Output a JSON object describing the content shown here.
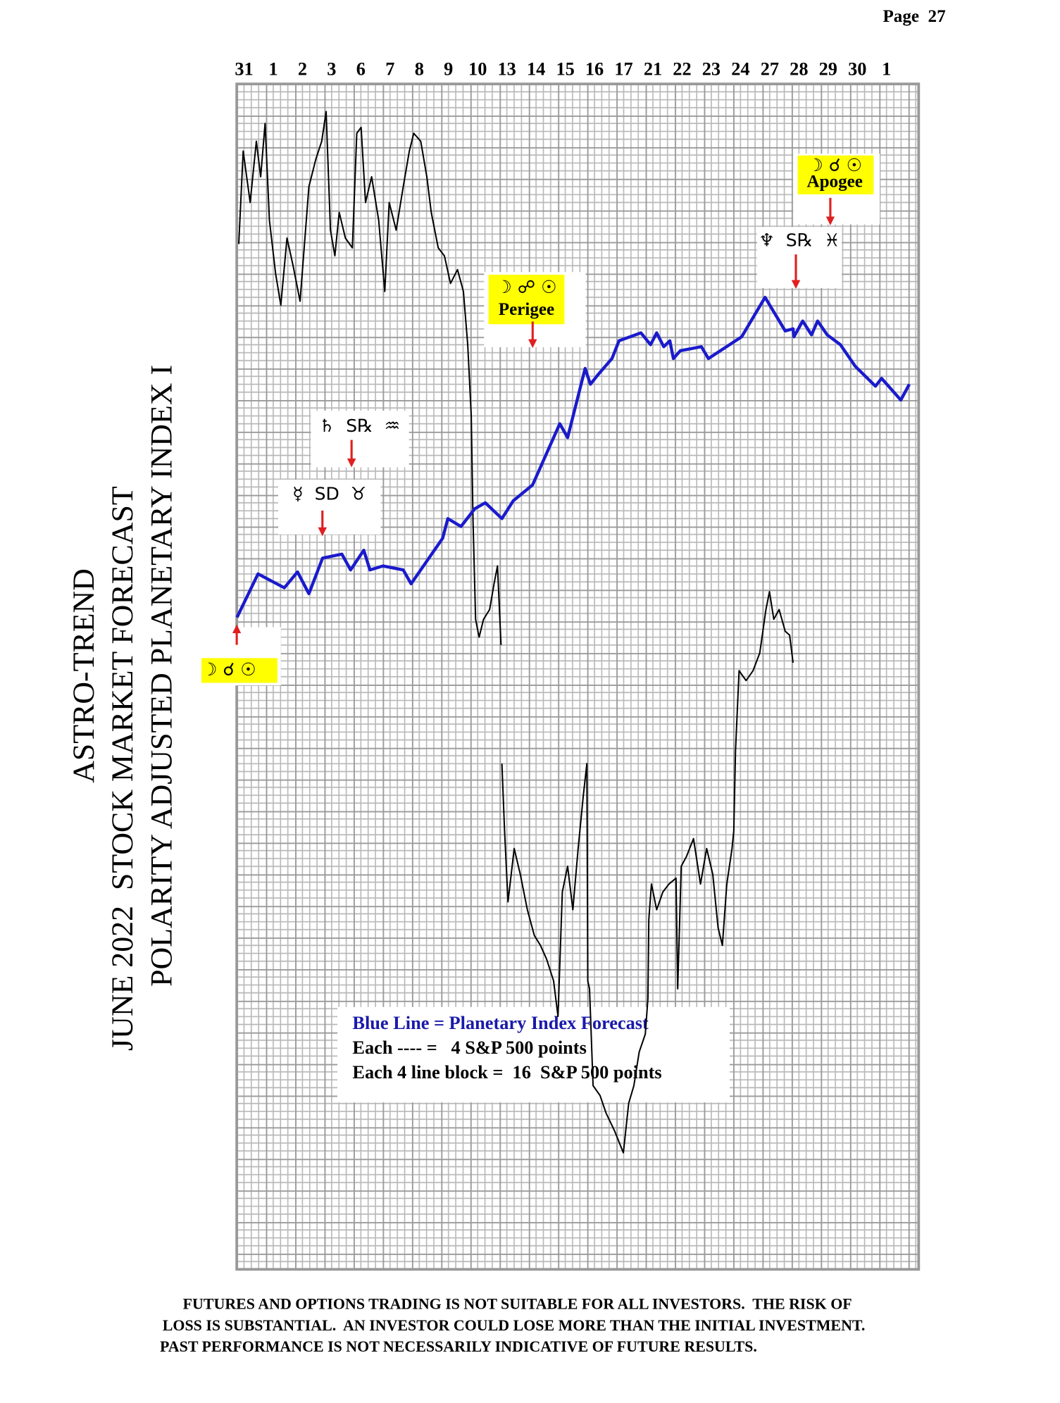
{
  "page_number": "Page  27",
  "title_lines": [
    "ASTRO-TREND",
    "JUNE 2022  STOCK MARKET FORECAST",
    "POLARITY ADJUSTED PLANETARY INDEX I"
  ],
  "chart_data": {
    "type": "line",
    "xlim": [
      -0.25,
      23.1
    ],
    "xticks": [
      {
        "value": 0,
        "label": "31"
      },
      {
        "value": 1,
        "label": "1"
      },
      {
        "value": 2,
        "label": "2"
      },
      {
        "value": 3,
        "label": "3"
      },
      {
        "value": 4,
        "label": "6"
      },
      {
        "value": 5,
        "label": "7"
      },
      {
        "value": 6,
        "label": "8"
      },
      {
        "value": 7,
        "label": "9"
      },
      {
        "value": 8,
        "label": "10"
      },
      {
        "value": 9,
        "label": "13"
      },
      {
        "value": 10,
        "label": "14"
      },
      {
        "value": 11,
        "label": "15"
      },
      {
        "value": 12,
        "label": "16"
      },
      {
        "value": 13,
        "label": "17"
      },
      {
        "value": 14,
        "label": "21"
      },
      {
        "value": 15,
        "label": "22"
      },
      {
        "value": 16,
        "label": "23"
      },
      {
        "value": 17,
        "label": "24"
      },
      {
        "value": 18,
        "label": "27"
      },
      {
        "value": 19,
        "label": "28"
      },
      {
        "value": 20,
        "label": "29"
      },
      {
        "value": 21,
        "label": "30"
      },
      {
        "value": 22,
        "label": "1"
      }
    ],
    "ylim": [
      0,
      600
    ],
    "series": [
      {
        "color": "#1a1acc",
        "x": [
          -0.24,
          0.48,
          1.38,
          1.83,
          2.22,
          2.69,
          3.35,
          3.65,
          4.1,
          4.31,
          4.76,
          5.45,
          5.72,
          6.8,
          6.98,
          7.43,
          7.9,
          8.26,
          8.83,
          9.22,
          9.88,
          10.81,
          11.08,
          11.68,
          11.86,
          12.13,
          12.6,
          12.84,
          13.59,
          13.92,
          14.13,
          14.37,
          14.58,
          14.7,
          14.94,
          15.66,
          15.9,
          17.04,
          17.84,
          18.53,
          18.8,
          18.83,
          19.13,
          19.43,
          19.64,
          19.97,
          20.42,
          20.93,
          21.62,
          21.83,
          22.49,
          22.78
        ],
        "values": [
          330,
          352,
          345,
          353,
          342,
          360,
          362,
          354,
          364,
          354,
          356,
          354,
          347,
          370,
          380,
          376,
          385,
          388,
          380,
          389,
          397,
          428,
          421,
          456,
          448,
          453,
          461,
          470,
          474,
          468,
          474,
          467,
          470,
          461,
          465,
          467,
          461,
          472,
          492,
          475,
          476,
          472,
          480,
          473,
          480,
          473,
          468,
          457,
          447,
          451,
          440,
          448
        ]
      },
      {
        "color": "#000000",
        "x": [
          -0.18,
          -0.03,
          0.21,
          0.42,
          0.57,
          0.72,
          0.87,
          1.08,
          1.26,
          1.47,
          1.68,
          1.92,
          2.22,
          2.46,
          2.66,
          2.81,
          2.96,
          3.11,
          3.26,
          3.47,
          3.71,
          3.86,
          4.01,
          4.16,
          4.37,
          4.61,
          4.82,
          4.97,
          5.21,
          5.45,
          5.66,
          5.81,
          6.05,
          6.26,
          6.41,
          6.65,
          6.86,
          7.07,
          7.31,
          7.51,
          7.66,
          7.78,
          7.84,
          7.93,
          8.05,
          8.2,
          8.41,
          8.56,
          8.68,
          8.8,
          null,
          8.83,
          8.92,
          9.04,
          9.25,
          9.46,
          9.7,
          9.94,
          10.15,
          10.36,
          10.6,
          10.75,
          10.9,
          11.08,
          11.26,
          11.44,
          11.62,
          11.74,
          11.77,
          11.83,
          11.95,
          12.19,
          12.4,
          12.69,
          12.99,
          13.17,
          13.35,
          13.53,
          13.74,
          13.83,
          13.86,
          13.95,
          14.13,
          14.34,
          14.55,
          14.79,
          14.85,
          14.97,
          15.15,
          15.39,
          15.63,
          15.84,
          16.05,
          16.23,
          16.38,
          16.53,
          16.71,
          16.77,
          16.83,
          16.95,
          17.19,
          17.43,
          17.66,
          17.87,
          17.99,
          18.14,
          18.32,
          18.53,
          18.68,
          18.8
        ],
        "values": [
          519,
          566,
          540,
          571,
          553,
          580,
          531,
          504,
          488,
          522,
          508,
          490,
          548,
          562,
          571,
          586,
          526,
          513,
          535,
          522,
          517,
          575,
          578,
          540,
          553,
          531,
          495,
          540,
          526,
          548,
          566,
          575,
          571,
          553,
          535,
          517,
          513,
          499,
          506,
          495,
          468,
          432,
          379,
          329,
          320,
          329,
          334,
          347,
          356,
          316,
          null,
          256,
          222,
          186,
          213,
          200,
          182,
          169,
          164,
          157,
          146,
          128,
          191,
          204,
          182,
          213,
          240,
          256,
          146,
          142,
          93,
          88,
          79,
          70,
          59,
          84,
          93,
          110,
          119,
          137,
          177,
          195,
          182,
          191,
          195,
          198,
          142,
          204,
          209,
          218,
          195,
          213,
          200,
          173,
          164,
          195,
          213,
          222,
          263,
          303,
          298,
          303,
          312,
          334,
          343,
          329,
          334,
          323,
          321,
          307
        ]
      }
    ],
    "annotations": [
      {
        "lines": [
          "☽ ☌ ☉"
        ],
        "highlight": true
      },
      {
        "lines": [
          "☿  SD  ♉"
        ],
        "highlight": false
      },
      {
        "lines": [
          "♄  S℞  ♒"
        ],
        "highlight": false
      },
      {
        "lines": [
          "☽ ☍ ☉",
          "Perigee"
        ],
        "highlight": true
      },
      {
        "lines": [
          "♆  S℞  ♓"
        ],
        "highlight": false
      },
      {
        "lines": [
          "☽ ☌ ☉",
          "Apogee"
        ],
        "highlight": true
      }
    ],
    "notes": [
      "Blue Line = Planetary Index Forecast",
      "Each ---- =   4 S&P 500 points",
      "Each 4 line block =  16  S&P 500 points"
    ]
  },
  "disclaimer": [
    "FUTURES AND OPTIONS TRADING IS NOT SUITABLE FOR ALL INVESTORS.  THE RISK OF",
    "LOSS IS SUBSTANTIAL.  AN INVESTOR COULD LOSE MORE THAN THE INITIAL INVESTMENT.",
    "PAST PERFORMANCE IS NOT NECESSARILY INDICATIVE OF FUTURE RESULTS."
  ]
}
